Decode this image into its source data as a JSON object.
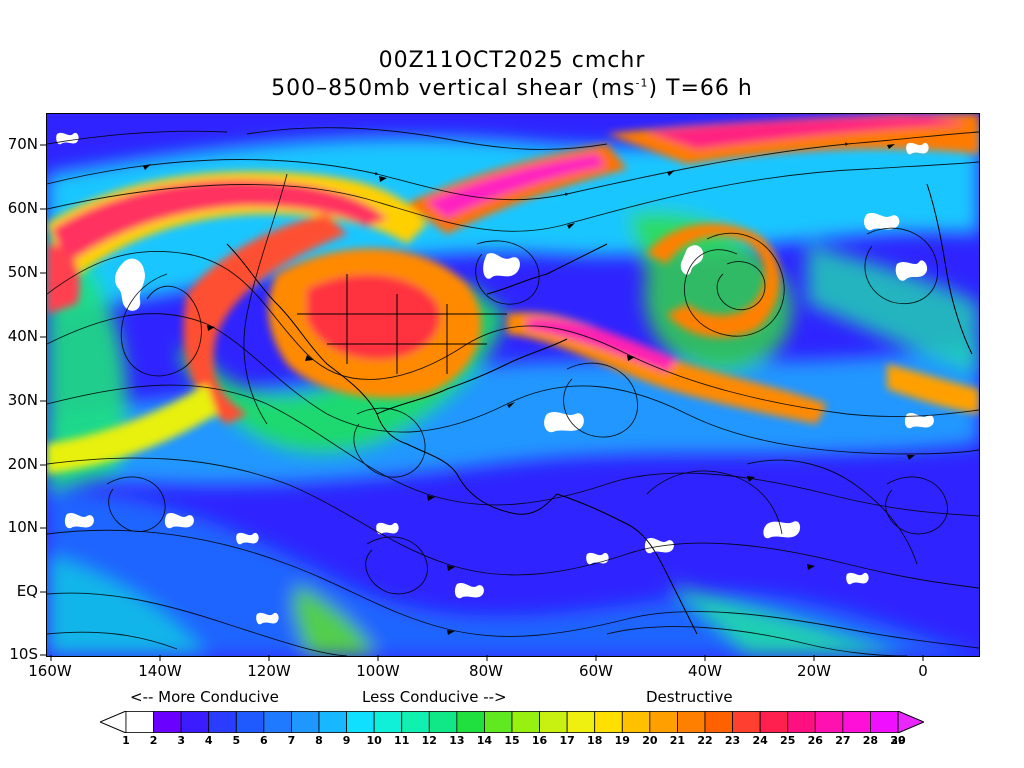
{
  "title": {
    "line1": "00Z11OCT2025 cmchr",
    "line2_main": "500–850mb vertical shear (ms",
    "line2_sup": "-1",
    "line2_tail": ") T=66 h"
  },
  "map": {
    "lat_labels": [
      "70N",
      "60N",
      "50N",
      "40N",
      "30N",
      "20N",
      "10N",
      "EQ",
      "10S"
    ],
    "lon_labels": [
      "160W",
      "140W",
      "120W",
      "100W",
      "80W",
      "60W",
      "40W",
      "20W",
      "0"
    ],
    "projection": "lat-lon",
    "extent": {
      "lon_min": -160,
      "lon_max": 10,
      "lat_min": -10,
      "lat_max": 75
    }
  },
  "notes": {
    "more": "<-- More Conducive",
    "less": "Less Conducive -->",
    "destructive": "Destructive"
  },
  "colorbar": {
    "labels": [
      "1",
      "2",
      "3",
      "4",
      "5",
      "6",
      "7",
      "8",
      "9",
      "10",
      "11",
      "12",
      "13",
      "14",
      "15",
      "16",
      "17",
      "18",
      "19",
      "20",
      "21",
      "22",
      "23",
      "24",
      "25",
      "26",
      "27",
      "28",
      "29",
      "30"
    ],
    "colors": [
      "#ffffff",
      "#6a00ff",
      "#3a1cff",
      "#2a3cff",
      "#1e5aff",
      "#1f7aff",
      "#1e98ff",
      "#17b8ff",
      "#10e0ff",
      "#10f0d8",
      "#10f0b0",
      "#10e888",
      "#20e040",
      "#60e820",
      "#98f010",
      "#c8f010",
      "#f0f010",
      "#ffe000",
      "#ffc000",
      "#ffa000",
      "#ff8000",
      "#ff6000",
      "#ff4030",
      "#ff2050",
      "#ff1080",
      "#ff10b0",
      "#ff10d8",
      "#f010ff"
    ],
    "under_color": "#ffffff",
    "over_color": "#e828ff"
  }
}
